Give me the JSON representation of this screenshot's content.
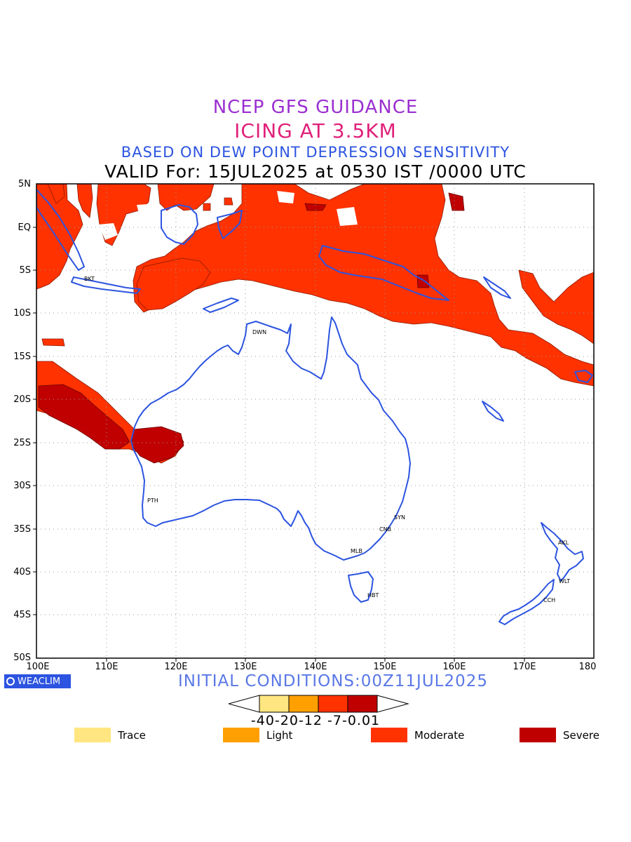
{
  "header": {
    "line1": "NCEP GFS GUIDANCE",
    "line2": "ICING AT 3.5KM",
    "line3": "BASED ON DEW POINT DEPRESSION SENSITIVITY",
    "line4": "VALID For: 15JUL2025 at 0530 IST /0000 UTC"
  },
  "axes": {
    "lat_labels": [
      "5N",
      "EQ",
      "5S",
      "10S",
      "15S",
      "20S",
      "25S",
      "30S",
      "35S",
      "40S",
      "45S",
      "50S"
    ],
    "lon_labels": [
      "100E",
      "110E",
      "120E",
      "130E",
      "140E",
      "150E",
      "160E",
      "170E",
      "180"
    ]
  },
  "cities": [
    "BKT",
    "DWN",
    "PTH",
    "SYN",
    "CNB",
    "MLB",
    "HBT",
    "AKL",
    "WLT",
    "CCH"
  ],
  "footer": {
    "brand": "WEACLIM",
    "initial": "INITIAL CONDITIONS:00Z11JUL2025",
    "colorbar_labels": "-40-20-12 -7-0.01"
  },
  "legend": [
    {
      "label": "Trace",
      "color": "#ffe680"
    },
    {
      "label": "Light",
      "color": "#ffa000"
    },
    {
      "label": "Moderate",
      "color": "#ff3200"
    },
    {
      "label": "Severe",
      "color": "#c00000"
    }
  ],
  "colors": {
    "coast": "#2c54e0",
    "trace": "#ffe680",
    "light": "#ffa000",
    "moderate": "#ff3200",
    "severe": "#c00000"
  }
}
